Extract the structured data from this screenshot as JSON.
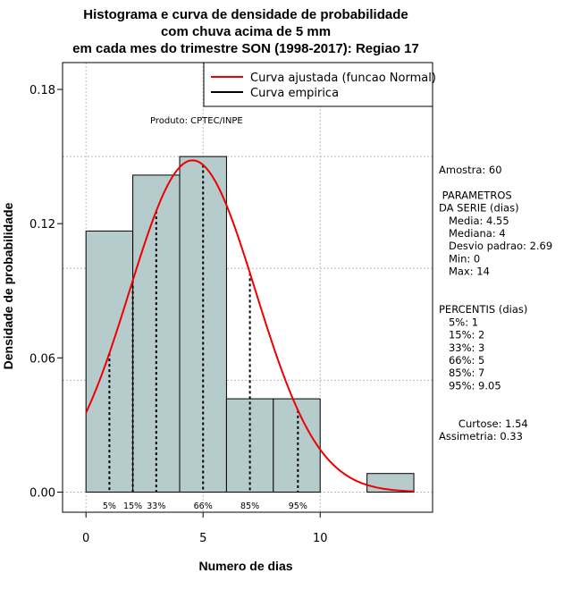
{
  "chart_data": {
    "type": "bar",
    "title": [
      "Histograma e curva de densidade de probabilidade",
      "com chuva acima de 5 mm",
      "em cada mes do trimestre SON (1998-2017): Regiao 17"
    ],
    "xlabel": "Numero de dias",
    "ylabel": "Densidade de probabilidade",
    "xlim": [
      -1,
      14.8
    ],
    "ylim": [
      -0.009,
      0.192
    ],
    "x_ticks": [
      0,
      5,
      10
    ],
    "x_tick_labels": [
      "0",
      "5",
      "10"
    ],
    "y_ticks": [
      0.0,
      0.06,
      0.12,
      0.18
    ],
    "y_tick_labels": [
      "0.00",
      "0.06",
      "0.12",
      "0.18"
    ],
    "bins": [
      {
        "start": 0,
        "end": 2,
        "density": 0.1167
      },
      {
        "start": 2,
        "end": 4,
        "density": 0.1417
      },
      {
        "start": 4,
        "end": 6,
        "density": 0.15
      },
      {
        "start": 6,
        "end": 8,
        "density": 0.0417
      },
      {
        "start": 8,
        "end": 10,
        "density": 0.0417
      },
      {
        "start": 12,
        "end": 14,
        "density": 0.0083
      }
    ],
    "bar_color": "#b6cccc",
    "curve": {
      "name": "Curva ajustada (funcao Normal)",
      "dist": "normal",
      "mean": 4.55,
      "sd": 2.69,
      "x_range": [
        0,
        14
      ],
      "color": "#ee0000"
    },
    "empirical": {
      "name": "Curva empirica",
      "color": "#000000"
    },
    "legend": [
      {
        "label": "Curva ajustada (funcao Normal)",
        "color": "#ee0000"
      },
      {
        "label": "Curva empirica",
        "color": "#000000"
      }
    ],
    "legend_position": "top-right",
    "percentiles": [
      {
        "label": "5%",
        "x": 1
      },
      {
        "label": "15%",
        "x": 2
      },
      {
        "label": "33%",
        "x": 3
      },
      {
        "label": "66%",
        "x": 5
      },
      {
        "label": "85%",
        "x": 7
      },
      {
        "label": "95%",
        "x": 9.05
      }
    ],
    "product_label": "Produto: CPTEC/INPE",
    "grid": true,
    "grid_y": [
      0.0,
      0.05,
      0.1,
      0.15
    ],
    "grid_x": [
      0,
      5,
      10
    ],
    "stats_text": [
      "Amostra: 60",
      "",
      " PARAMETROS",
      "DA SERIE (dias)",
      "   Media: 4.55",
      "   Mediana: 4",
      "   Desvio padrao: 2.69",
      "   Min: 0",
      "   Max: 14",
      "",
      "",
      "PERCENTIS (dias)",
      "   5%: 1",
      "   15%: 2",
      "   33%: 3",
      "   66%: 5",
      "   85%: 7",
      "   95%: 9.05",
      "",
      "",
      "      Curtose: 1.54",
      "Assimetria: 0.33"
    ]
  }
}
